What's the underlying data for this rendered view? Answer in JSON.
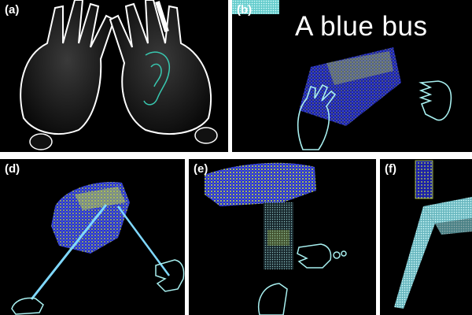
{
  "panels": {
    "a": {
      "label": "(a)"
    },
    "b": {
      "label": "(b)",
      "caption": "A blue bus"
    },
    "d": {
      "label": "(d)"
    },
    "e": {
      "label": "(e)"
    },
    "f": {
      "label": "(f)"
    }
  },
  "colors": {
    "background": "#000000",
    "hand_outline": "#ffffff",
    "hand_cyan": "#a8f0f0",
    "bus_blue": "#2a35d8",
    "bus_yellow": "#c8e040",
    "ray": "#7fd8ff"
  },
  "icons": [
    "hand-outline-icon",
    "point-cloud-bus-icon",
    "pointing-ray-icon",
    "ear-icon"
  ]
}
